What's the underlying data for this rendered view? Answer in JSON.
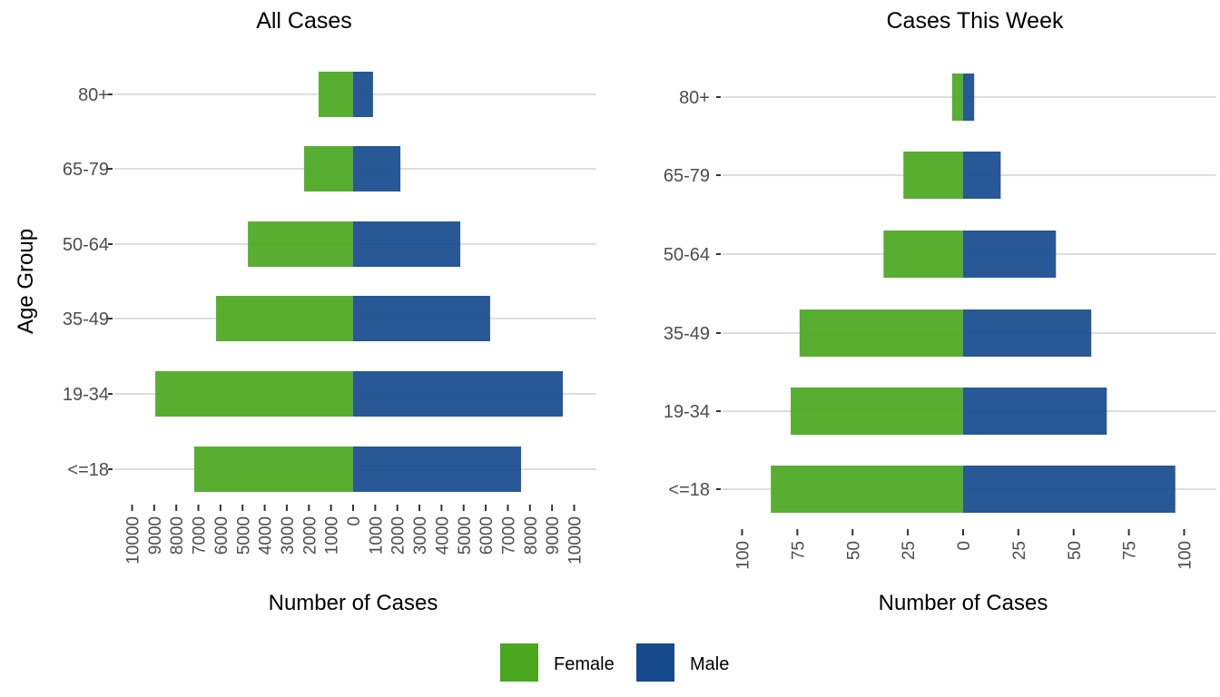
{
  "chart_data": [
    {
      "type": "bar",
      "orientation": "horizontal-diverging",
      "title": "All Cases",
      "xlabel": "Number of Cases",
      "ylabel": "Age Group",
      "categories": [
        "80+",
        "65-79",
        "50-64",
        "35-49",
        "19-34",
        "<=18"
      ],
      "series": [
        {
          "name": "Female",
          "color": "#4aa71f",
          "values": [
            1560,
            2220,
            4760,
            6200,
            8950,
            7190
          ]
        },
        {
          "name": "Male",
          "color": "#164a8c",
          "values": [
            900,
            2140,
            4850,
            6200,
            9490,
            7600
          ]
        }
      ],
      "xlim": [
        -10000,
        10000
      ],
      "xticks": [
        -10000,
        -9000,
        -8000,
        -7000,
        -6000,
        -5000,
        -4000,
        -3000,
        -2000,
        -1000,
        0,
        1000,
        2000,
        3000,
        4000,
        5000,
        6000,
        7000,
        8000,
        9000,
        10000
      ],
      "xtick_labels": [
        "10000",
        "9000",
        "8000",
        "7000",
        "6000",
        "5000",
        "4000",
        "3000",
        "2000",
        "1000",
        "0",
        "1000",
        "2000",
        "3000",
        "4000",
        "5000",
        "6000",
        "7000",
        "8000",
        "9000",
        "10000"
      ],
      "grid": "horizontal-major"
    },
    {
      "type": "bar",
      "orientation": "horizontal-diverging",
      "title": "Cases This Week",
      "xlabel": "Number of Cases",
      "ylabel": "",
      "categories": [
        "80+",
        "65-79",
        "50-64",
        "35-49",
        "19-34",
        "<=18"
      ],
      "series": [
        {
          "name": "Female",
          "color": "#4aa71f",
          "values": [
            5,
            27,
            36,
            74,
            78,
            87
          ]
        },
        {
          "name": "Male",
          "color": "#164a8c",
          "values": [
            5,
            17,
            42,
            58,
            65,
            96
          ]
        }
      ],
      "xlim": [
        -100,
        100
      ],
      "xticks": [
        -100,
        -75,
        -50,
        -25,
        0,
        25,
        50,
        75,
        100
      ],
      "xtick_labels": [
        "100",
        "75",
        "50",
        "25",
        "0",
        "25",
        "50",
        "75",
        "100"
      ],
      "grid": "horizontal-major"
    }
  ],
  "legend": {
    "placement": "bottom",
    "items": [
      {
        "label": "Female",
        "color": "#4aa71f"
      },
      {
        "label": "Male",
        "color": "#164a8c"
      }
    ]
  }
}
